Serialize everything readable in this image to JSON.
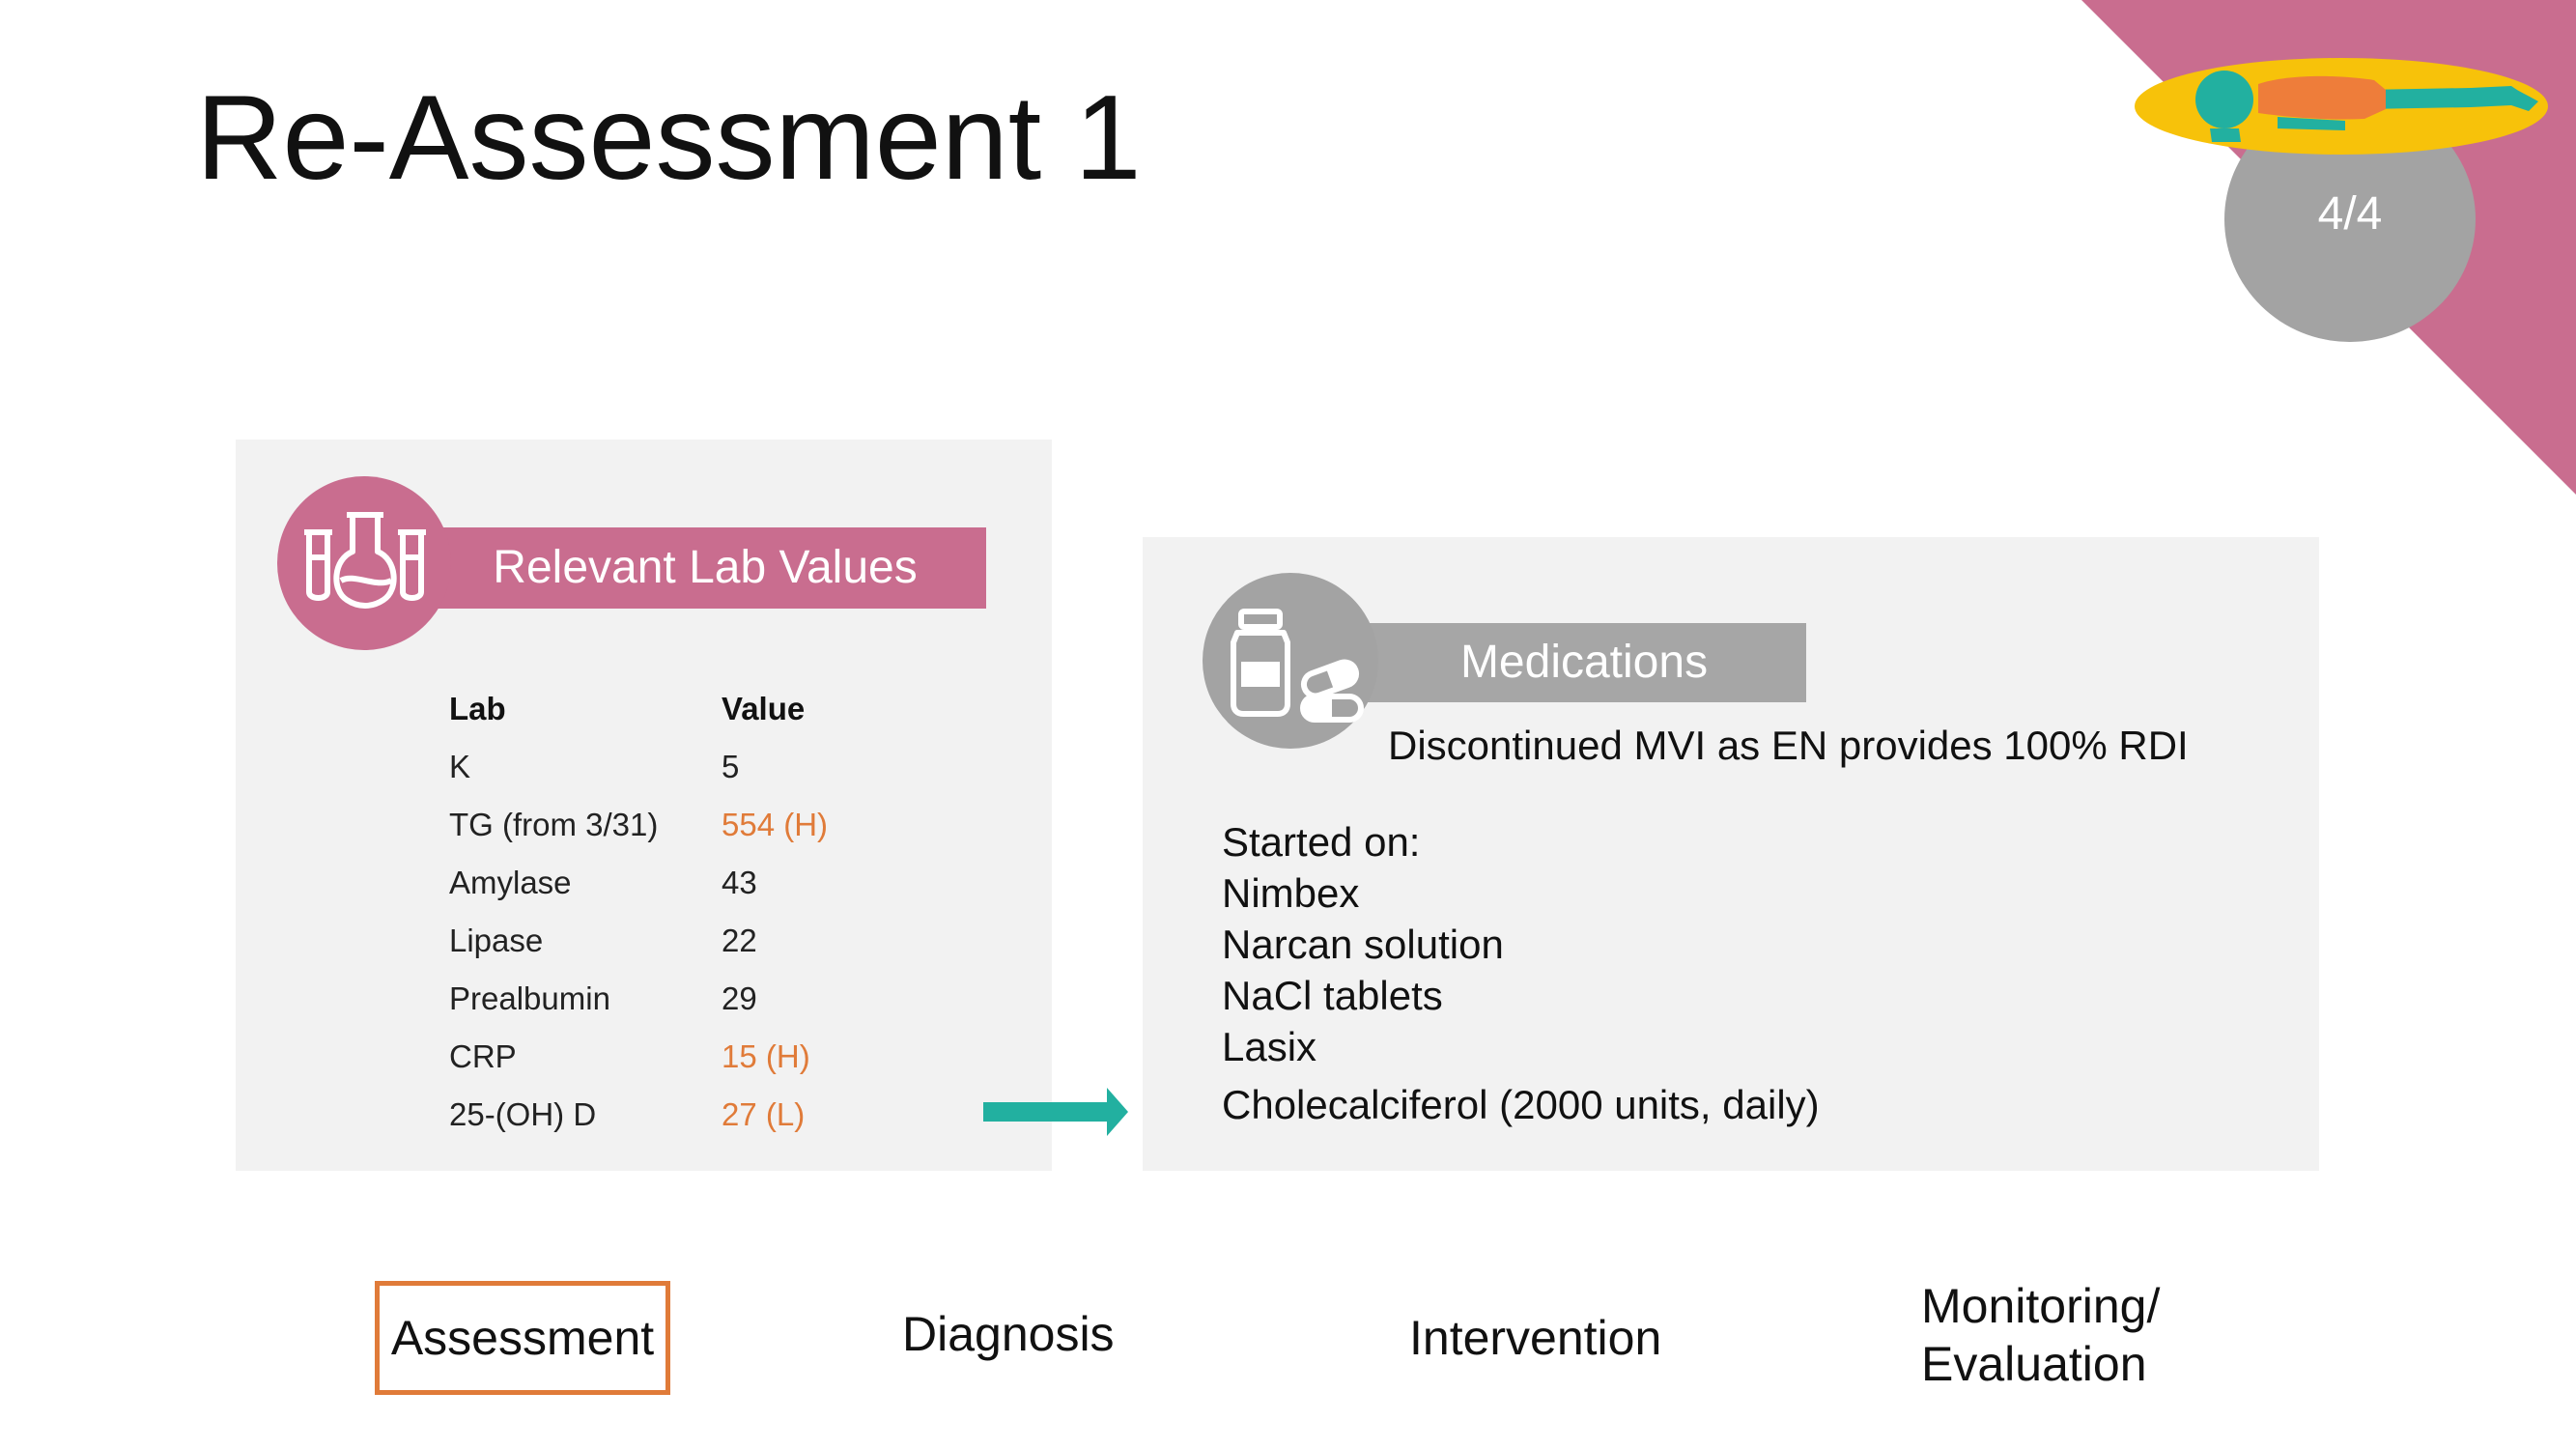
{
  "slide": {
    "title": "Re-Assessment 1",
    "counter": "4/4"
  },
  "colors": {
    "accent_pink": "#c96d8f",
    "accent_gray": "#a6a6a6",
    "accent_orange": "#e07b39",
    "accent_teal": "#22b0a0",
    "patient_tray": "#f7c20a",
    "panel_bg": "#f2f2f2"
  },
  "labs": {
    "banner": "Relevant Lab Values",
    "icon": "lab-flasks-icon",
    "header": {
      "lab": "Lab",
      "value": "Value"
    },
    "rows": [
      {
        "lab": "K",
        "value": "5",
        "flag": ""
      },
      {
        "lab": "TG (from 3/31)",
        "value": "554 (H)",
        "flag": "high"
      },
      {
        "lab": "Amylase",
        "value": "43",
        "flag": ""
      },
      {
        "lab": "Lipase",
        "value": "22",
        "flag": ""
      },
      {
        "lab": "Prealbumin",
        "value": "29",
        "flag": ""
      },
      {
        "lab": "CRP",
        "value": "15 (H)",
        "flag": "high"
      },
      {
        "lab": "25-(OH) D",
        "value": "27 (L)",
        "flag": "low"
      }
    ]
  },
  "medications": {
    "banner": "Medications",
    "icon": "pill-bottle-icon",
    "note": "Discontinued MVI as EN provides 100% RDI",
    "started_label": "Started on:",
    "items": [
      "Nimbex",
      "Narcan solution",
      "NaCl tablets",
      "Lasix",
      "Cholecalciferol (2000 units, daily)"
    ]
  },
  "nav": {
    "assessment": "Assessment",
    "diagnosis": "Diagnosis",
    "intervention": "Intervention",
    "monitoring_line1": "Monitoring/",
    "monitoring_line2": "Evaluation",
    "active": "assessment"
  }
}
